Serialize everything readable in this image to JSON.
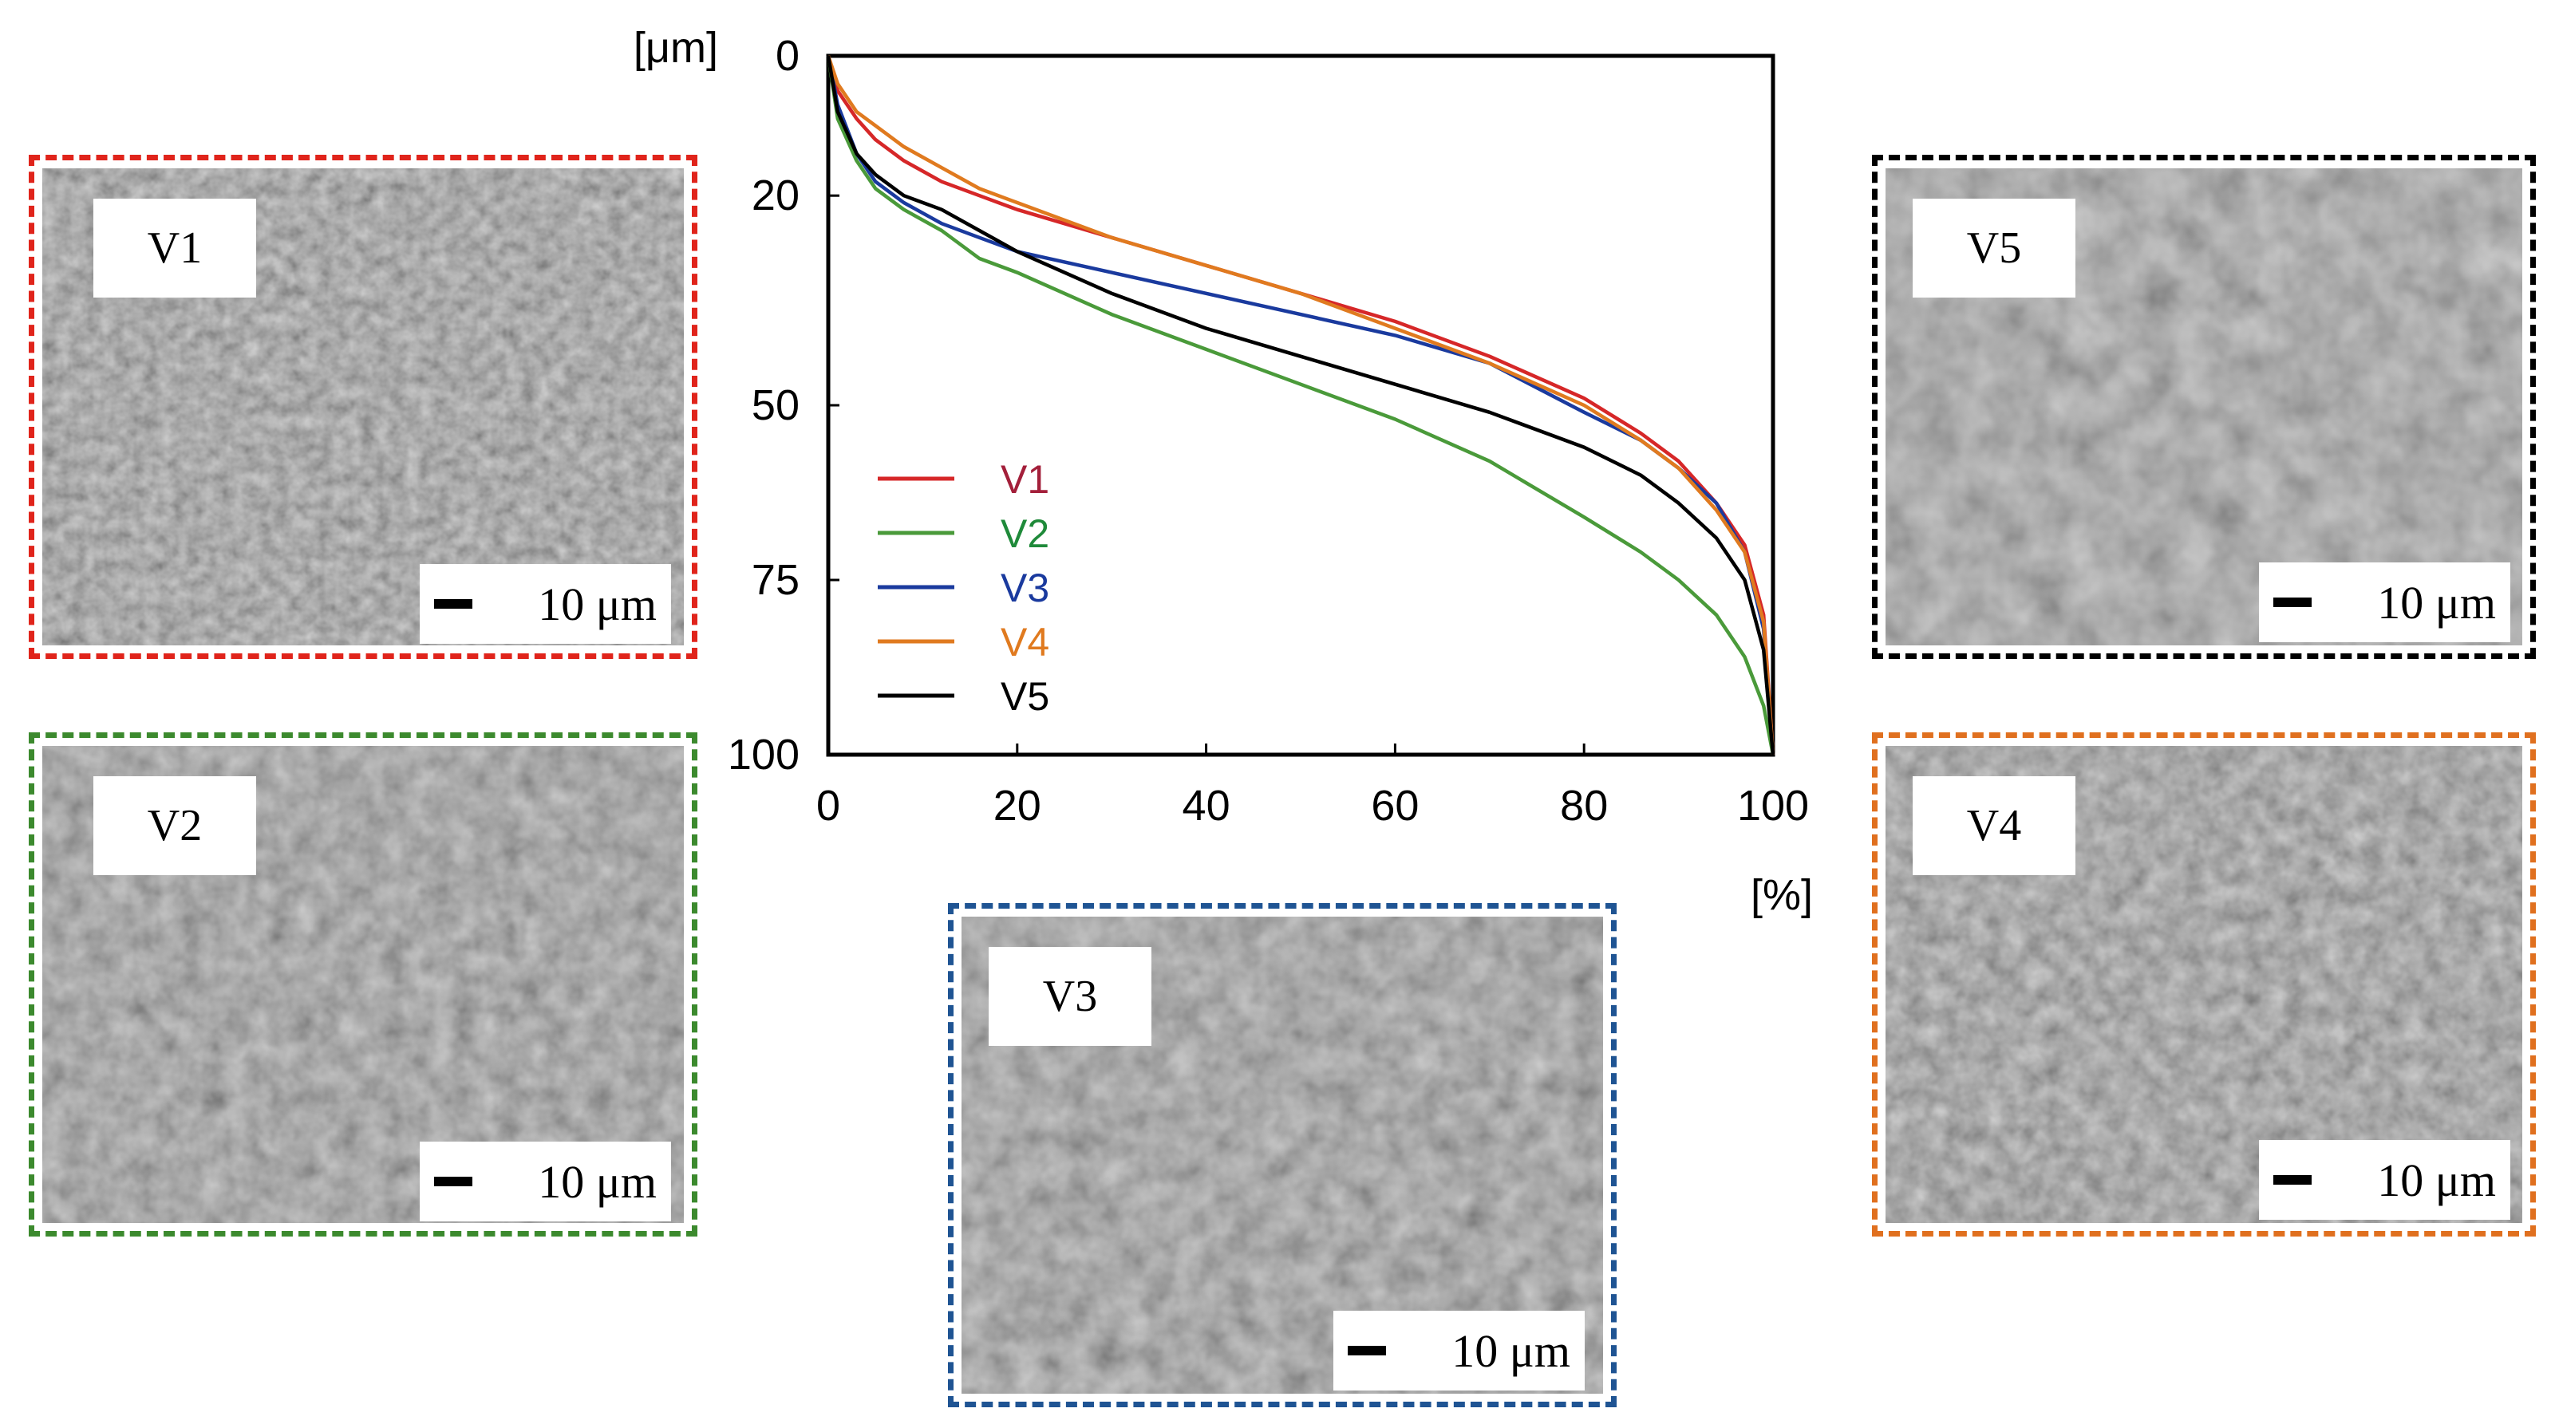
{
  "chart_data": {
    "type": "line",
    "title": "",
    "x_unit": "[%]",
    "y_unit": "[μm]",
    "xlim": [
      0,
      100
    ],
    "ylim": [
      0,
      100
    ],
    "y_inverted": true,
    "xticks": [
      "0",
      "20",
      "40",
      "60",
      "80",
      "100"
    ],
    "yticks": [
      "0",
      "20",
      "50",
      "75",
      "100"
    ],
    "legend_position": "lower-left",
    "series": [
      {
        "name": "V1",
        "color": "#d62728",
        "label_color": "#a31f3a",
        "x": [
          0,
          1,
          3,
          5,
          8,
          12,
          16,
          20,
          30,
          40,
          50,
          60,
          70,
          80,
          86,
          90,
          94,
          97,
          99,
          100
        ],
        "y": [
          0,
          5,
          9,
          12,
          15,
          18,
          20,
          22,
          26,
          30,
          34,
          38,
          43,
          49,
          54,
          58,
          64,
          70,
          80,
          100
        ]
      },
      {
        "name": "V2",
        "color": "#4a9a3a",
        "label_color": "#1f8a3a",
        "x": [
          0,
          1,
          3,
          5,
          8,
          12,
          16,
          20,
          30,
          40,
          50,
          60,
          70,
          80,
          86,
          90,
          94,
          97,
          99,
          100
        ],
        "y": [
          0,
          9,
          15,
          19,
          22,
          25,
          29,
          31,
          37,
          42,
          47,
          52,
          58,
          66,
          71,
          75,
          80,
          86,
          93,
          100
        ]
      },
      {
        "name": "V3",
        "color": "#1a3a9e",
        "label_color": "#1a3a9e",
        "x": [
          0,
          1,
          3,
          5,
          8,
          12,
          16,
          20,
          30,
          40,
          50,
          60,
          70,
          80,
          86,
          90,
          94,
          97,
          99,
          100
        ],
        "y": [
          0,
          7,
          14,
          18,
          21,
          24,
          26,
          28,
          31,
          34,
          37,
          40,
          44,
          51,
          55,
          59,
          64,
          71,
          82,
          100
        ]
      },
      {
        "name": "V4",
        "color": "#e07a1f",
        "label_color": "#e07a1f",
        "x": [
          0,
          1,
          3,
          5,
          8,
          12,
          16,
          20,
          30,
          40,
          50,
          60,
          70,
          80,
          86,
          90,
          94,
          97,
          99,
          100
        ],
        "y": [
          0,
          4,
          8,
          10,
          13,
          16,
          19,
          21,
          26,
          30,
          34,
          39,
          44,
          50,
          55,
          59,
          65,
          71,
          81,
          100
        ]
      },
      {
        "name": "V5",
        "color": "#000000",
        "label_color": "#000000",
        "x": [
          0,
          1,
          3,
          5,
          8,
          12,
          16,
          20,
          30,
          40,
          50,
          60,
          70,
          80,
          86,
          90,
          94,
          97,
          99,
          100
        ],
        "y": [
          0,
          8,
          14,
          17,
          20,
          22,
          25,
          28,
          34,
          39,
          43,
          47,
          51,
          56,
          60,
          64,
          69,
          75,
          85,
          100
        ]
      }
    ]
  },
  "panels": [
    {
      "id": "V1",
      "label": "V1",
      "scale": "10 μm",
      "border_color": "#e0241b"
    },
    {
      "id": "V2",
      "label": "V2",
      "scale": "10 μm",
      "border_color": "#3c8a2e"
    },
    {
      "id": "V3",
      "label": "V3",
      "scale": "10 μm",
      "border_color": "#1f5493"
    },
    {
      "id": "V4",
      "label": "V4",
      "scale": "10 μm",
      "border_color": "#e0701f"
    },
    {
      "id": "V5",
      "label": "V5",
      "scale": "10 μm",
      "border_color": "#000000"
    }
  ]
}
